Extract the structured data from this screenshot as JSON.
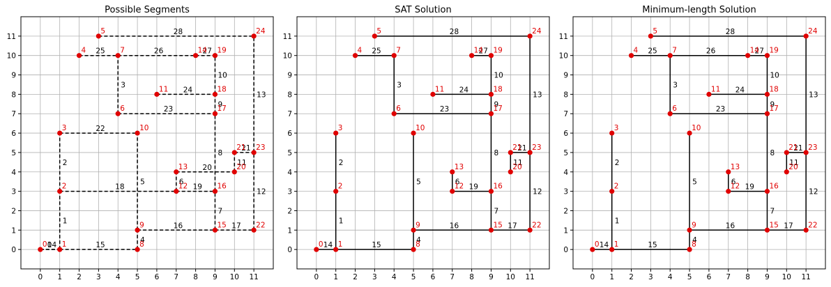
{
  "chart_data": [
    {
      "type": "graph",
      "title": "Possible Segments",
      "line_style": "dashed",
      "edges_shown": [
        0,
        1,
        2,
        3,
        4,
        5,
        6,
        7,
        8,
        9,
        10,
        11,
        12,
        13,
        14,
        15,
        16,
        17,
        18,
        19,
        20,
        21,
        22,
        23,
        24,
        25,
        26,
        27,
        28
      ]
    },
    {
      "type": "graph",
      "title": "SAT Solution",
      "line_style": "solid",
      "edges_shown": [
        1,
        2,
        3,
        4,
        5,
        6,
        7,
        8,
        9,
        10,
        11,
        12,
        13,
        14,
        15,
        16,
        17,
        19,
        21,
        23,
        24,
        25,
        27,
        28
      ]
    },
    {
      "type": "graph",
      "title": "Minimum-length Solution",
      "line_style": "solid",
      "edges_shown": [
        1,
        2,
        3,
        4,
        5,
        6,
        7,
        8,
        9,
        10,
        11,
        12,
        13,
        14,
        15,
        16,
        17,
        19,
        21,
        23,
        24,
        25,
        26,
        27,
        28
      ]
    }
  ],
  "nodes": [
    {
      "id": "0",
      "x": 0,
      "y": 0
    },
    {
      "id": "1",
      "x": 1,
      "y": 0
    },
    {
      "id": "2",
      "x": 1,
      "y": 3
    },
    {
      "id": "3",
      "x": 1,
      "y": 6
    },
    {
      "id": "4",
      "x": 2,
      "y": 10
    },
    {
      "id": "5",
      "x": 3,
      "y": 11
    },
    {
      "id": "6",
      "x": 4,
      "y": 7
    },
    {
      "id": "7",
      "x": 4,
      "y": 10
    },
    {
      "id": "8",
      "x": 5,
      "y": 0
    },
    {
      "id": "9",
      "x": 5,
      "y": 1
    },
    {
      "id": "10",
      "x": 5,
      "y": 6
    },
    {
      "id": "11",
      "x": 6,
      "y": 8
    },
    {
      "id": "12",
      "x": 7,
      "y": 3
    },
    {
      "id": "13",
      "x": 7,
      "y": 4
    },
    {
      "id": "14",
      "x": 8,
      "y": 10
    },
    {
      "id": "15",
      "x": 9,
      "y": 1
    },
    {
      "id": "16",
      "x": 9,
      "y": 3
    },
    {
      "id": "17",
      "x": 9,
      "y": 7
    },
    {
      "id": "18",
      "x": 9,
      "y": 8
    },
    {
      "id": "19",
      "x": 9,
      "y": 10
    },
    {
      "id": "20",
      "x": 10,
      "y": 4
    },
    {
      "id": "21",
      "x": 10,
      "y": 5
    },
    {
      "id": "22",
      "x": 11,
      "y": 1
    },
    {
      "id": "23",
      "x": 11,
      "y": 5
    },
    {
      "id": "24",
      "x": 11,
      "y": 11
    }
  ],
  "edges": [
    {
      "label": "0",
      "a": 0,
      "b": 1
    },
    {
      "label": "1",
      "a": 1,
      "b": 2
    },
    {
      "label": "2",
      "a": 2,
      "b": 3
    },
    {
      "label": "3",
      "a": 6,
      "b": 7
    },
    {
      "label": "4",
      "a": 8,
      "b": 9
    },
    {
      "label": "5",
      "a": 9,
      "b": 10
    },
    {
      "label": "6",
      "a": 12,
      "b": 13
    },
    {
      "label": "7",
      "a": 15,
      "b": 16
    },
    {
      "label": "8",
      "a": 16,
      "b": 17
    },
    {
      "label": "9",
      "a": 17,
      "b": 18
    },
    {
      "label": "10",
      "a": 18,
      "b": 19
    },
    {
      "label": "11",
      "a": 20,
      "b": 21
    },
    {
      "label": "12",
      "a": 22,
      "b": 23
    },
    {
      "label": "13",
      "a": 23,
      "b": 24
    },
    {
      "label": "14",
      "a": 0,
      "b": 1
    },
    {
      "label": "15",
      "a": 1,
      "b": 8
    },
    {
      "label": "16",
      "a": 9,
      "b": 15
    },
    {
      "label": "17",
      "a": 15,
      "b": 22
    },
    {
      "label": "18",
      "a": 2,
      "b": 12
    },
    {
      "label": "19",
      "a": 12,
      "b": 16
    },
    {
      "label": "20",
      "a": 13,
      "b": 20
    },
    {
      "label": "21",
      "a": 21,
      "b": 23
    },
    {
      "label": "22",
      "a": 3,
      "b": 10
    },
    {
      "label": "23",
      "a": 6,
      "b": 17
    },
    {
      "label": "24",
      "a": 11,
      "b": 18
    },
    {
      "label": "25",
      "a": 4,
      "b": 7
    },
    {
      "label": "26",
      "a": 7,
      "b": 14
    },
    {
      "label": "27",
      "a": 14,
      "b": 19
    },
    {
      "label": "28",
      "a": 5,
      "b": 24
    }
  ],
  "axes": {
    "x_ticks": [
      "0",
      "1",
      "2",
      "3",
      "4",
      "5",
      "6",
      "7",
      "8",
      "9",
      "10",
      "11"
    ],
    "y_ticks": [
      "0",
      "1",
      "2",
      "3",
      "4",
      "5",
      "6",
      "7",
      "8",
      "9",
      "10",
      "11"
    ],
    "xlim": [
      -1,
      12
    ],
    "ylim": [
      -1,
      12
    ],
    "grid": true
  },
  "colors": {
    "node": "#e00000",
    "node_label": "#e00000",
    "edge": "#000000",
    "grid": "#b0b0b0"
  }
}
